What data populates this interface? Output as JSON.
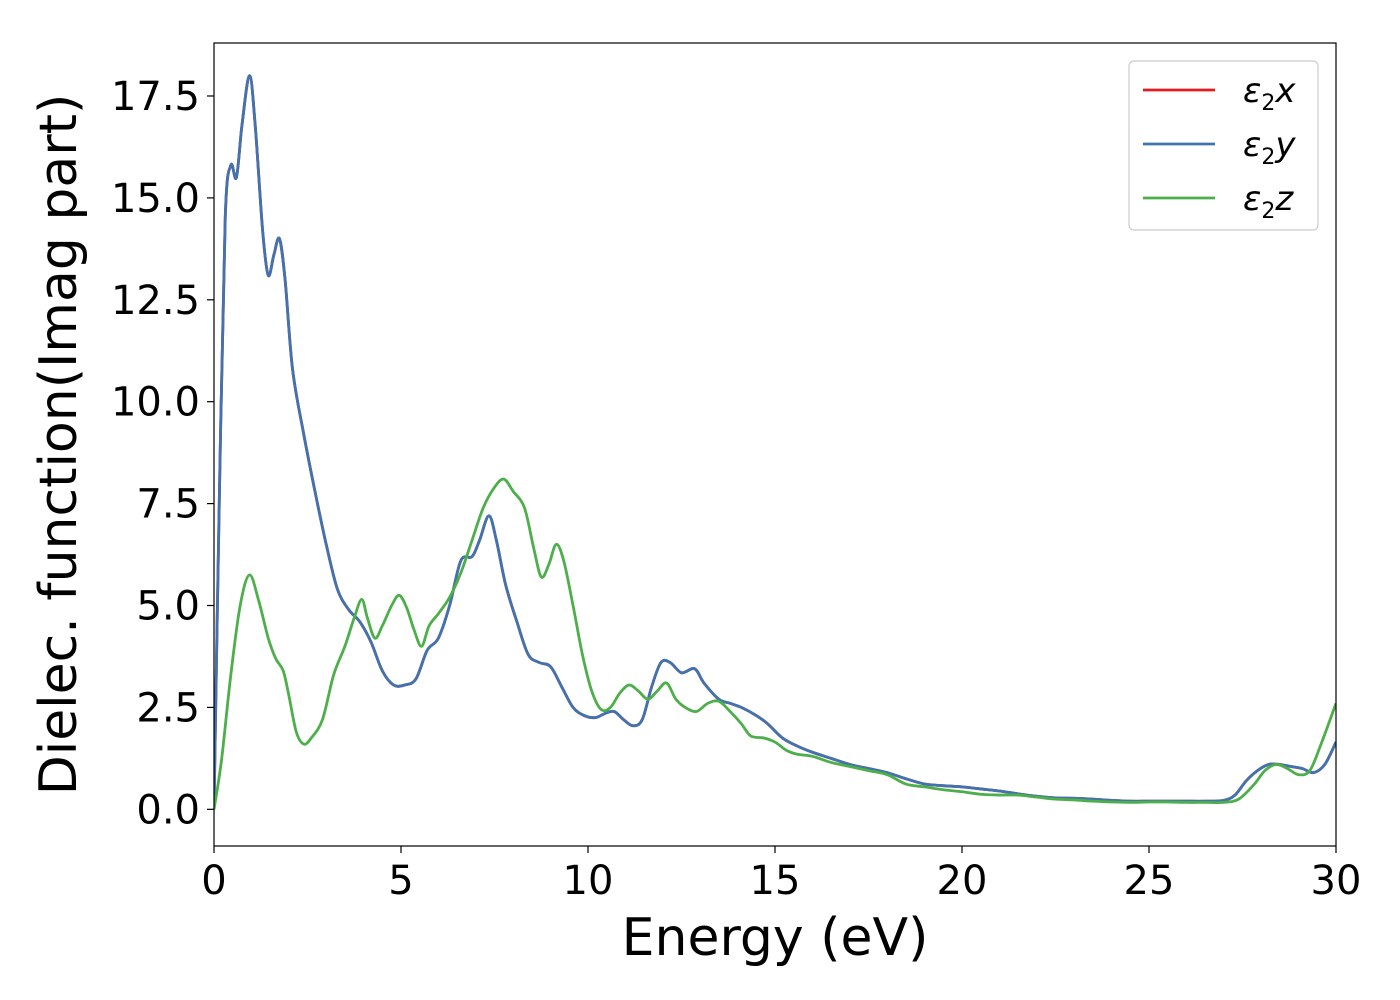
{
  "chart_data": {
    "type": "line",
    "xlabel": "Energy (eV)",
    "ylabel": "Dielec. function(Imag part)",
    "xlim": [
      0,
      30
    ],
    "ylim": [
      -0.9,
      18.8
    ],
    "x_ticks": [
      0,
      5,
      10,
      15,
      20,
      25,
      30
    ],
    "x_tick_labels": [
      "0",
      "5",
      "10",
      "15",
      "20",
      "25",
      "30"
    ],
    "y_ticks": [
      0,
      2.5,
      5,
      7.5,
      10,
      12.5,
      15,
      17.5
    ],
    "y_tick_labels": [
      "0.0",
      "2.5",
      "5.0",
      "7.5",
      "10.0",
      "12.5",
      "15.0",
      "17.5"
    ],
    "grid": false,
    "legend_position": "top-right",
    "series": [
      {
        "name": "ε2x",
        "legend": {
          "base": "ε",
          "sub": "2",
          "var": "x"
        },
        "color": "#e41a1c",
        "points": [
          [
            0,
            0
          ],
          [
            0.15,
            8.0
          ],
          [
            0.3,
            14.5
          ],
          [
            0.45,
            15.8
          ],
          [
            0.6,
            15.5
          ],
          [
            0.75,
            16.8
          ],
          [
            0.95,
            18.0
          ],
          [
            1.1,
            16.8
          ],
          [
            1.3,
            14.2
          ],
          [
            1.45,
            13.1
          ],
          [
            1.6,
            13.6
          ],
          [
            1.75,
            14.0
          ],
          [
            1.9,
            13.0
          ],
          [
            2.1,
            10.8
          ],
          [
            2.4,
            9.2
          ],
          [
            2.7,
            7.8
          ],
          [
            3.0,
            6.5
          ],
          [
            3.3,
            5.4
          ],
          [
            3.6,
            4.9
          ],
          [
            3.9,
            4.6
          ],
          [
            4.2,
            4.1
          ],
          [
            4.5,
            3.4
          ],
          [
            4.8,
            3.05
          ],
          [
            5.1,
            3.05
          ],
          [
            5.4,
            3.2
          ],
          [
            5.7,
            3.9
          ],
          [
            6.0,
            4.2
          ],
          [
            6.3,
            5.0
          ],
          [
            6.6,
            6.1
          ],
          [
            6.9,
            6.2
          ],
          [
            7.1,
            6.6
          ],
          [
            7.35,
            7.2
          ],
          [
            7.55,
            6.6
          ],
          [
            7.8,
            5.5
          ],
          [
            8.1,
            4.6
          ],
          [
            8.4,
            3.8
          ],
          [
            8.7,
            3.6
          ],
          [
            9.0,
            3.5
          ],
          [
            9.3,
            3.0
          ],
          [
            9.6,
            2.5
          ],
          [
            9.9,
            2.3
          ],
          [
            10.2,
            2.25
          ],
          [
            10.45,
            2.35
          ],
          [
            10.7,
            2.4
          ],
          [
            10.95,
            2.2
          ],
          [
            11.2,
            2.05
          ],
          [
            11.45,
            2.2
          ],
          [
            11.7,
            3.0
          ],
          [
            11.95,
            3.6
          ],
          [
            12.2,
            3.6
          ],
          [
            12.5,
            3.35
          ],
          [
            12.85,
            3.45
          ],
          [
            13.1,
            3.1
          ],
          [
            13.5,
            2.7
          ],
          [
            13.8,
            2.6
          ],
          [
            14.1,
            2.5
          ],
          [
            14.5,
            2.3
          ],
          [
            14.8,
            2.1
          ],
          [
            15.2,
            1.75
          ],
          [
            15.6,
            1.55
          ],
          [
            16.0,
            1.4
          ],
          [
            16.5,
            1.25
          ],
          [
            17.0,
            1.1
          ],
          [
            17.5,
            1.0
          ],
          [
            18.0,
            0.9
          ],
          [
            18.5,
            0.75
          ],
          [
            19.0,
            0.62
          ],
          [
            19.5,
            0.58
          ],
          [
            20.0,
            0.55
          ],
          [
            20.5,
            0.5
          ],
          [
            21.0,
            0.45
          ],
          [
            21.5,
            0.38
          ],
          [
            22.0,
            0.32
          ],
          [
            22.5,
            0.28
          ],
          [
            23.0,
            0.27
          ],
          [
            23.5,
            0.25
          ],
          [
            24.0,
            0.22
          ],
          [
            24.5,
            0.2
          ],
          [
            25.0,
            0.2
          ],
          [
            25.5,
            0.2
          ],
          [
            26.0,
            0.2
          ],
          [
            26.5,
            0.2
          ],
          [
            27.0,
            0.22
          ],
          [
            27.3,
            0.35
          ],
          [
            27.6,
            0.7
          ],
          [
            27.9,
            0.95
          ],
          [
            28.2,
            1.1
          ],
          [
            28.5,
            1.1
          ],
          [
            28.8,
            1.05
          ],
          [
            29.1,
            1.0
          ],
          [
            29.4,
            0.9
          ],
          [
            29.7,
            1.1
          ],
          [
            30.0,
            1.65
          ]
        ]
      },
      {
        "name": "ε2y",
        "legend": {
          "base": "ε",
          "sub": "2",
          "var": "y"
        },
        "color": "#3f74b0",
        "points": [
          [
            0,
            0
          ],
          [
            0.15,
            8.0
          ],
          [
            0.3,
            14.5
          ],
          [
            0.45,
            15.8
          ],
          [
            0.6,
            15.5
          ],
          [
            0.75,
            16.8
          ],
          [
            0.95,
            18.0
          ],
          [
            1.1,
            16.8
          ],
          [
            1.3,
            14.2
          ],
          [
            1.45,
            13.1
          ],
          [
            1.6,
            13.6
          ],
          [
            1.75,
            14.0
          ],
          [
            1.9,
            13.0
          ],
          [
            2.1,
            10.8
          ],
          [
            2.4,
            9.2
          ],
          [
            2.7,
            7.8
          ],
          [
            3.0,
            6.5
          ],
          [
            3.3,
            5.4
          ],
          [
            3.6,
            4.9
          ],
          [
            3.9,
            4.6
          ],
          [
            4.2,
            4.1
          ],
          [
            4.5,
            3.4
          ],
          [
            4.8,
            3.05
          ],
          [
            5.1,
            3.05
          ],
          [
            5.4,
            3.2
          ],
          [
            5.7,
            3.9
          ],
          [
            6.0,
            4.2
          ],
          [
            6.3,
            5.0
          ],
          [
            6.6,
            6.1
          ],
          [
            6.9,
            6.2
          ],
          [
            7.1,
            6.6
          ],
          [
            7.35,
            7.2
          ],
          [
            7.55,
            6.6
          ],
          [
            7.8,
            5.5
          ],
          [
            8.1,
            4.6
          ],
          [
            8.4,
            3.8
          ],
          [
            8.7,
            3.6
          ],
          [
            9.0,
            3.5
          ],
          [
            9.3,
            3.0
          ],
          [
            9.6,
            2.5
          ],
          [
            9.9,
            2.3
          ],
          [
            10.2,
            2.25
          ],
          [
            10.45,
            2.35
          ],
          [
            10.7,
            2.4
          ],
          [
            10.95,
            2.2
          ],
          [
            11.2,
            2.05
          ],
          [
            11.45,
            2.2
          ],
          [
            11.7,
            3.0
          ],
          [
            11.95,
            3.6
          ],
          [
            12.2,
            3.6
          ],
          [
            12.5,
            3.35
          ],
          [
            12.85,
            3.45
          ],
          [
            13.1,
            3.1
          ],
          [
            13.5,
            2.7
          ],
          [
            13.8,
            2.6
          ],
          [
            14.1,
            2.5
          ],
          [
            14.5,
            2.3
          ],
          [
            14.8,
            2.1
          ],
          [
            15.2,
            1.75
          ],
          [
            15.6,
            1.55
          ],
          [
            16.0,
            1.4
          ],
          [
            16.5,
            1.25
          ],
          [
            17.0,
            1.1
          ],
          [
            17.5,
            1.0
          ],
          [
            18.0,
            0.9
          ],
          [
            18.5,
            0.75
          ],
          [
            19.0,
            0.62
          ],
          [
            19.5,
            0.58
          ],
          [
            20.0,
            0.55
          ],
          [
            20.5,
            0.5
          ],
          [
            21.0,
            0.45
          ],
          [
            21.5,
            0.38
          ],
          [
            22.0,
            0.32
          ],
          [
            22.5,
            0.28
          ],
          [
            23.0,
            0.27
          ],
          [
            23.5,
            0.25
          ],
          [
            24.0,
            0.22
          ],
          [
            24.5,
            0.2
          ],
          [
            25.0,
            0.2
          ],
          [
            25.5,
            0.2
          ],
          [
            26.0,
            0.2
          ],
          [
            26.5,
            0.2
          ],
          [
            27.0,
            0.22
          ],
          [
            27.3,
            0.35
          ],
          [
            27.6,
            0.7
          ],
          [
            27.9,
            0.95
          ],
          [
            28.2,
            1.1
          ],
          [
            28.5,
            1.1
          ],
          [
            28.8,
            1.05
          ],
          [
            29.1,
            1.0
          ],
          [
            29.4,
            0.9
          ],
          [
            29.7,
            1.1
          ],
          [
            30.0,
            1.65
          ]
        ]
      },
      {
        "name": "ε2z",
        "legend": {
          "base": "ε",
          "sub": "2",
          "var": "z"
        },
        "color": "#4daf4a",
        "points": [
          [
            0,
            0
          ],
          [
            0.2,
            1.2
          ],
          [
            0.45,
            3.3
          ],
          [
            0.7,
            5.0
          ],
          [
            0.95,
            5.75
          ],
          [
            1.2,
            5.1
          ],
          [
            1.45,
            4.2
          ],
          [
            1.65,
            3.7
          ],
          [
            1.85,
            3.4
          ],
          [
            2.0,
            2.8
          ],
          [
            2.2,
            1.9
          ],
          [
            2.4,
            1.6
          ],
          [
            2.6,
            1.75
          ],
          [
            2.9,
            2.2
          ],
          [
            3.2,
            3.3
          ],
          [
            3.5,
            4.0
          ],
          [
            3.75,
            4.7
          ],
          [
            3.95,
            5.15
          ],
          [
            4.1,
            4.7
          ],
          [
            4.3,
            4.2
          ],
          [
            4.5,
            4.5
          ],
          [
            4.75,
            5.0
          ],
          [
            4.95,
            5.25
          ],
          [
            5.15,
            4.95
          ],
          [
            5.35,
            4.4
          ],
          [
            5.55,
            4.0
          ],
          [
            5.75,
            4.5
          ],
          [
            6.0,
            4.8
          ],
          [
            6.3,
            5.2
          ],
          [
            6.6,
            5.8
          ],
          [
            6.9,
            6.6
          ],
          [
            7.2,
            7.4
          ],
          [
            7.5,
            7.9
          ],
          [
            7.75,
            8.1
          ],
          [
            8.0,
            7.8
          ],
          [
            8.3,
            7.4
          ],
          [
            8.55,
            6.4
          ],
          [
            8.75,
            5.7
          ],
          [
            8.95,
            6.0
          ],
          [
            9.15,
            6.5
          ],
          [
            9.35,
            6.1
          ],
          [
            9.6,
            5.0
          ],
          [
            9.85,
            3.8
          ],
          [
            10.1,
            2.9
          ],
          [
            10.35,
            2.45
          ],
          [
            10.6,
            2.5
          ],
          [
            10.85,
            2.85
          ],
          [
            11.1,
            3.05
          ],
          [
            11.35,
            2.9
          ],
          [
            11.6,
            2.7
          ],
          [
            11.85,
            2.9
          ],
          [
            12.1,
            3.1
          ],
          [
            12.35,
            2.7
          ],
          [
            12.6,
            2.5
          ],
          [
            12.9,
            2.4
          ],
          [
            13.2,
            2.6
          ],
          [
            13.5,
            2.65
          ],
          [
            13.8,
            2.4
          ],
          [
            14.1,
            2.1
          ],
          [
            14.35,
            1.8
          ],
          [
            14.7,
            1.75
          ],
          [
            15.0,
            1.65
          ],
          [
            15.3,
            1.45
          ],
          [
            15.6,
            1.35
          ],
          [
            16.0,
            1.3
          ],
          [
            16.5,
            1.15
          ],
          [
            17.0,
            1.05
          ],
          [
            17.5,
            0.95
          ],
          [
            18.0,
            0.85
          ],
          [
            18.5,
            0.62
          ],
          [
            19.0,
            0.55
          ],
          [
            19.5,
            0.48
          ],
          [
            20.0,
            0.43
          ],
          [
            20.5,
            0.37
          ],
          [
            21.0,
            0.35
          ],
          [
            21.5,
            0.35
          ],
          [
            22.0,
            0.3
          ],
          [
            22.5,
            0.25
          ],
          [
            23.0,
            0.23
          ],
          [
            23.5,
            0.2
          ],
          [
            24.0,
            0.18
          ],
          [
            24.5,
            0.17
          ],
          [
            25.0,
            0.18
          ],
          [
            25.5,
            0.18
          ],
          [
            26.0,
            0.17
          ],
          [
            26.5,
            0.17
          ],
          [
            27.0,
            0.17
          ],
          [
            27.4,
            0.25
          ],
          [
            27.8,
            0.6
          ],
          [
            28.1,
            0.95
          ],
          [
            28.4,
            1.1
          ],
          [
            28.7,
            1.0
          ],
          [
            29.0,
            0.85
          ],
          [
            29.3,
            0.95
          ],
          [
            29.6,
            1.6
          ],
          [
            30.0,
            2.6
          ]
        ]
      }
    ]
  }
}
